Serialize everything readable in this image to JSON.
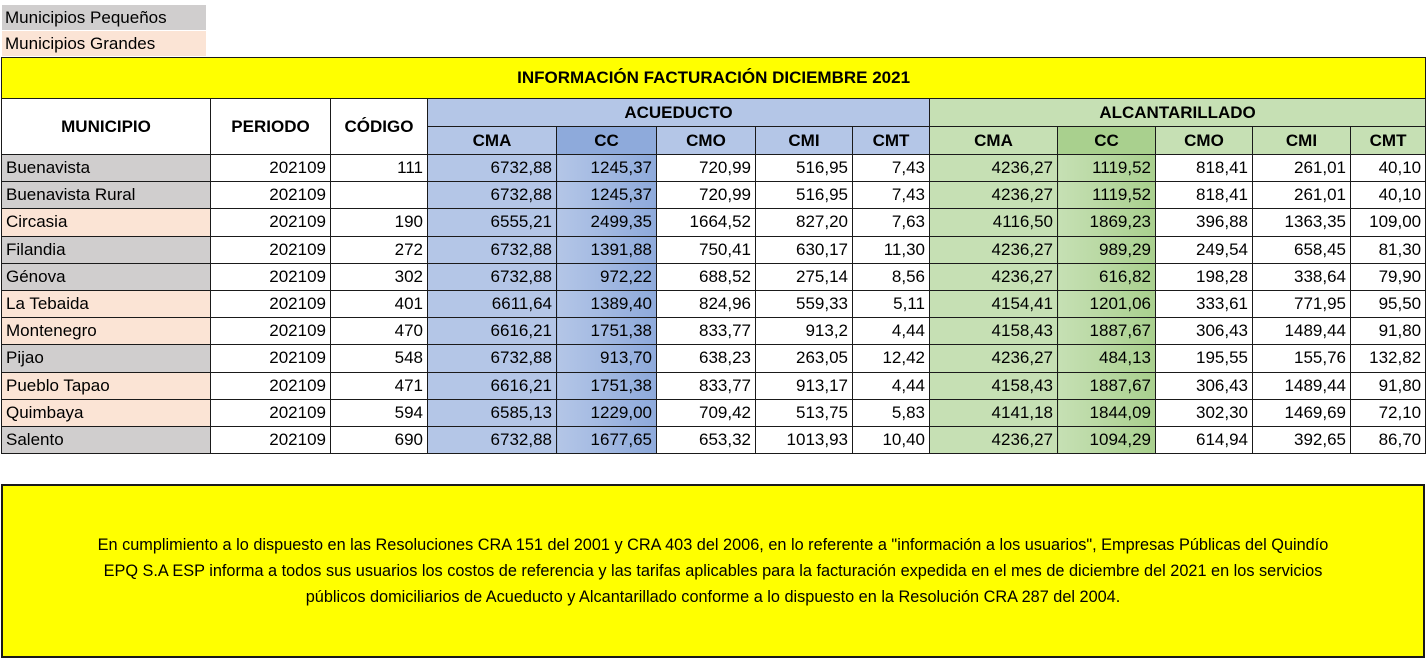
{
  "legend": {
    "small": "Municipios Pequeños",
    "big": "Municipios Grandes"
  },
  "colors": {
    "title_bg": "#ffff00",
    "small_municipality": "#d0cece",
    "large_municipality": "#fbe4d5",
    "acueducto_header": "#b4c6e7",
    "acueducto_cc": "#8eaadb",
    "alcantarillado_header": "#c6e0b4",
    "alcantarillado_cc": "#a9d08e"
  },
  "table": {
    "title": "INFORMACIÓN FACTURACIÓN DICIEMBRE 2021",
    "headers": {
      "municipio": "MUNICIPIO",
      "periodo": "PERIODO",
      "codigo": "CÓDIGO",
      "acueducto": "ACUEDUCTO",
      "alcantarillado": "ALCANTARILLADO",
      "acueducto_cols": [
        "CMA",
        "CC",
        "CMO",
        "CMI",
        "CMT"
      ],
      "alcantarillado_cols": [
        "CMA",
        "CC",
        "CMO",
        "CMI",
        "CMT"
      ]
    },
    "rows": [
      {
        "municipio": "Buenavista",
        "size": "small",
        "periodo": "202109",
        "codigo": "111",
        "acu": [
          "6732,88",
          "1245,37",
          "720,99",
          "516,95",
          "7,43"
        ],
        "alc": [
          "4236,27",
          "1119,52",
          "818,41",
          "261,01",
          "40,10"
        ]
      },
      {
        "municipio": "Buenavista Rural",
        "size": "small",
        "periodo": "202109",
        "codigo": "",
        "acu": [
          "6732,88",
          "1245,37",
          "720,99",
          "516,95",
          "7,43"
        ],
        "alc": [
          "4236,27",
          "1119,52",
          "818,41",
          "261,01",
          "40,10"
        ]
      },
      {
        "municipio": "Circasia",
        "size": "big",
        "periodo": "202109",
        "codigo": "190",
        "acu": [
          "6555,21",
          "2499,35",
          "1664,52",
          "827,20",
          "7,63"
        ],
        "alc": [
          "4116,50",
          "1869,23",
          "396,88",
          "1363,35",
          "109,00"
        ]
      },
      {
        "municipio": "Filandia",
        "size": "small",
        "periodo": "202109",
        "codigo": "272",
        "acu": [
          "6732,88",
          "1391,88",
          "750,41",
          "630,17",
          "11,30"
        ],
        "alc": [
          "4236,27",
          "989,29",
          "249,54",
          "658,45",
          "81,30"
        ]
      },
      {
        "municipio": "Génova",
        "size": "small",
        "periodo": "202109",
        "codigo": "302",
        "acu": [
          "6732,88",
          "972,22",
          "688,52",
          "275,14",
          "8,56"
        ],
        "alc": [
          "4236,27",
          "616,82",
          "198,28",
          "338,64",
          "79,90"
        ]
      },
      {
        "municipio": "La Tebaida",
        "size": "big",
        "periodo": "202109",
        "codigo": "401",
        "acu": [
          "6611,64",
          "1389,40",
          "824,96",
          "559,33",
          "5,11"
        ],
        "alc": [
          "4154,41",
          "1201,06",
          "333,61",
          "771,95",
          "95,50"
        ]
      },
      {
        "municipio": "Montenegro",
        "size": "big",
        "periodo": "202109",
        "codigo": "470",
        "acu": [
          "6616,21",
          "1751,38",
          "833,77",
          "913,2",
          "4,44"
        ],
        "alc": [
          "4158,43",
          "1887,67",
          "306,43",
          "1489,44",
          "91,80"
        ]
      },
      {
        "municipio": "Pijao",
        "size": "small",
        "periodo": "202109",
        "codigo": "548",
        "acu": [
          "6732,88",
          "913,70",
          "638,23",
          "263,05",
          "12,42"
        ],
        "alc": [
          "4236,27",
          "484,13",
          "195,55",
          "155,76",
          "132,82"
        ]
      },
      {
        "municipio": "Pueblo Tapao",
        "size": "big",
        "periodo": "202109",
        "codigo": "471",
        "acu": [
          "6616,21",
          "1751,38",
          "833,77",
          "913,17",
          "4,44"
        ],
        "alc": [
          "4158,43",
          "1887,67",
          "306,43",
          "1489,44",
          "91,80"
        ]
      },
      {
        "municipio": "Quimbaya",
        "size": "big",
        "periodo": "202109",
        "codigo": "594",
        "acu": [
          "6585,13",
          "1229,00",
          "709,42",
          "513,75",
          "5,83"
        ],
        "alc": [
          "4141,18",
          "1844,09",
          "302,30",
          "1469,69",
          "72,10"
        ]
      },
      {
        "municipio": "Salento",
        "size": "small",
        "periodo": "202109",
        "codigo": "690",
        "acu": [
          "6732,88",
          "1677,65",
          "653,32",
          "1013,93",
          "10,40"
        ],
        "alc": [
          "4236,27",
          "1094,29",
          "614,94",
          "392,65",
          "86,70"
        ]
      }
    ]
  },
  "note": {
    "lines": [
      "En cumplimiento a lo dispuesto en las Resoluciones CRA 151 del 2001 y CRA 403 del 2006, en lo referente a \"información a los usuarios\", Empresas Públicas del Quindío",
      "EPQ S.A ESP informa a todos sus usuarios los costos de referencia y las tarifas aplicables para la facturación expedida en el mes de diciembre del 2021 en los servicios",
      "públicos domiciliarios de Acueducto y Alcantarillado conforme a lo dispuesto en la Resolución CRA 287 del 2004."
    ]
  }
}
